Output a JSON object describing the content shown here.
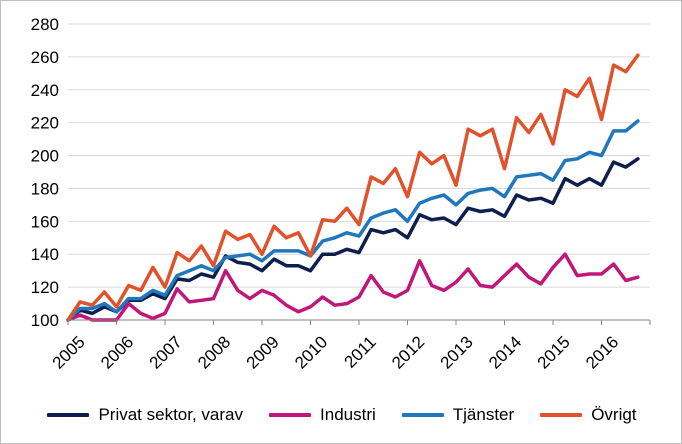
{
  "chart_data": {
    "type": "line",
    "title": "",
    "xlabel": "",
    "ylabel": "",
    "ylim": [
      100,
      280
    ],
    "yticks": [
      100,
      120,
      140,
      160,
      180,
      200,
      220,
      240,
      260,
      280
    ],
    "xlim": [
      2005,
      2017
    ],
    "xticks": [
      "2005",
      "2006",
      "2007",
      "2008",
      "2009",
      "2010",
      "2011",
      "2012",
      "2013",
      "2014",
      "2015",
      "2016"
    ],
    "grid": "horizontal",
    "legend_position": "bottom",
    "x": [
      2005.0,
      2005.25,
      2005.5,
      2005.75,
      2006.0,
      2006.25,
      2006.5,
      2006.75,
      2007.0,
      2007.25,
      2007.5,
      2007.75,
      2008.0,
      2008.25,
      2008.5,
      2008.75,
      2009.0,
      2009.25,
      2009.5,
      2009.75,
      2010.0,
      2010.25,
      2010.5,
      2010.75,
      2011.0,
      2011.25,
      2011.5,
      2011.75,
      2012.0,
      2012.25,
      2012.5,
      2012.75,
      2013.0,
      2013.25,
      2013.5,
      2013.75,
      2014.0,
      2014.25,
      2014.5,
      2014.75,
      2015.0,
      2015.25,
      2015.5,
      2015.75,
      2016.0,
      2016.25,
      2016.5,
      2016.75
    ],
    "series": [
      {
        "name": "Privat sektor, varav",
        "color": "#0e1f4f",
        "values": [
          100,
          106,
          104,
          108,
          105,
          112,
          112,
          116,
          113,
          125,
          124,
          128,
          126,
          139,
          135,
          134,
          130,
          137,
          133,
          133,
          130,
          140,
          140,
          143,
          141,
          155,
          153,
          155,
          150,
          164,
          161,
          162,
          158,
          168,
          166,
          167,
          163,
          176,
          173,
          174,
          171,
          186,
          182,
          186,
          182,
          196,
          193,
          198
        ]
      },
      {
        "name": "Industri",
        "color": "#c0187a",
        "values": [
          100,
          103,
          94,
          96,
          100,
          110,
          104,
          101,
          104,
          119,
          111,
          112,
          113,
          130,
          118,
          113,
          118,
          115,
          109,
          105,
          108,
          114,
          109,
          110,
          114,
          127,
          117,
          114,
          118,
          136,
          121,
          118,
          123,
          131,
          121,
          120,
          127,
          134,
          126,
          122,
          132,
          140,
          127,
          128,
          128,
          134,
          124,
          126
        ]
      },
      {
        "name": "Tjänster",
        "color": "#1f78bd",
        "values": [
          100,
          107,
          107,
          110,
          105,
          113,
          113,
          118,
          115,
          127,
          130,
          133,
          130,
          138,
          139,
          140,
          136,
          142,
          142,
          142,
          139,
          148,
          150,
          153,
          151,
          162,
          165,
          167,
          160,
          171,
          174,
          176,
          170,
          177,
          179,
          180,
          175,
          187,
          188,
          189,
          185,
          197,
          198,
          202,
          200,
          215,
          215,
          221
        ]
      },
      {
        "name": "Övrigt",
        "color": "#e0522b",
        "values": [
          100,
          111,
          109,
          117,
          108,
          121,
          118,
          132,
          120,
          141,
          136,
          145,
          133,
          154,
          149,
          152,
          140,
          157,
          150,
          153,
          139,
          161,
          160,
          168,
          158,
          187,
          183,
          192,
          175,
          202,
          195,
          200,
          182,
          216,
          212,
          216,
          192,
          223,
          214,
          225,
          207,
          240,
          236,
          247,
          222,
          255,
          251,
          261
        ]
      }
    ]
  }
}
